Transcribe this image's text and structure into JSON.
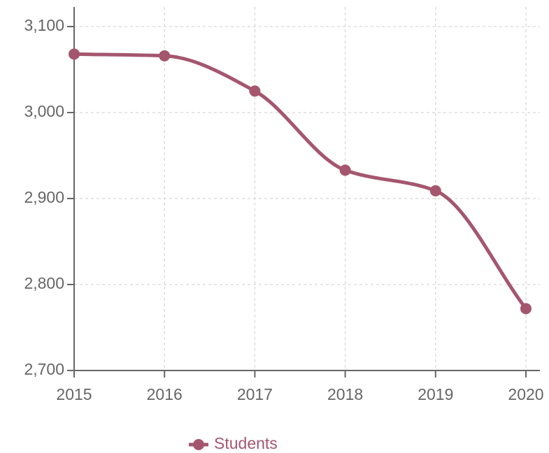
{
  "chart_data": {
    "type": "line",
    "x": [
      2015,
      2016,
      2017,
      2018,
      2019,
      2020
    ],
    "series": [
      {
        "name": "Students",
        "color": "#a5566f",
        "values": [
          3068,
          3066,
          3025,
          2933,
          2909,
          2772
        ]
      }
    ],
    "xlim": [
      2015,
      2020
    ],
    "xticks": [
      2015,
      2016,
      2017,
      2018,
      2019,
      2020
    ],
    "ylim": [
      2700,
      3100
    ],
    "yticks": [
      {
        "value": 2700,
        "label": "2,700"
      },
      {
        "value": 2800,
        "label": "2,800"
      },
      {
        "value": 2900,
        "label": "2,900"
      },
      {
        "value": 3000,
        "label": "3,000"
      },
      {
        "value": 3100,
        "label": "3,100"
      }
    ],
    "grid": true,
    "legend": "bottom"
  }
}
